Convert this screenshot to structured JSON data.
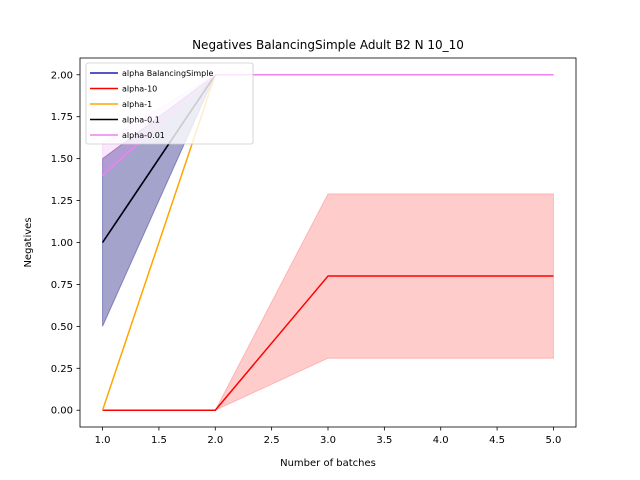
{
  "chart_data": {
    "type": "line",
    "title": "Negatives BalancingSimple Adult B2 N 10_10",
    "xlabel": "Number of batches",
    "ylabel": "Negatives",
    "xlim": [
      0.8,
      5.2
    ],
    "ylim": [
      -0.1,
      2.1
    ],
    "xticks": [
      1.0,
      1.5,
      2.0,
      2.5,
      3.0,
      3.5,
      4.0,
      4.5,
      5.0
    ],
    "xtick_labels": [
      "1.0",
      "1.5",
      "2.0",
      "2.5",
      "3.0",
      "3.5",
      "4.0",
      "4.5",
      "5.0"
    ],
    "yticks": [
      0.0,
      0.25,
      0.5,
      0.75,
      1.0,
      1.25,
      1.5,
      1.75,
      2.0
    ],
    "ytick_labels": [
      "0.00",
      "0.25",
      "0.50",
      "0.75",
      "1.00",
      "1.25",
      "1.50",
      "1.75",
      "2.00"
    ],
    "grid": false,
    "legend_position": "top-left",
    "x": [
      1,
      2,
      3,
      4,
      5
    ],
    "series": [
      {
        "name": "alpha BalancingSimple",
        "color": "#1f1fb4",
        "values": [
          1.0,
          2.0,
          2.0,
          2.0,
          2.0
        ],
        "band_low": [
          0.5,
          2.0,
          2.0,
          2.0,
          2.0
        ],
        "band_high": [
          1.5,
          2.0,
          2.0,
          2.0,
          2.0
        ],
        "band_color": "#1a1a80",
        "band_opacity": 0.4
      },
      {
        "name": "alpha-10",
        "color": "#ff0000",
        "values": [
          0.0,
          0.0,
          0.8,
          0.8,
          0.8
        ],
        "band_low": [
          0.0,
          0.0,
          0.31,
          0.31,
          0.31
        ],
        "band_high": [
          0.0,
          0.0,
          1.29,
          1.29,
          1.29
        ],
        "band_color": "#ff0000",
        "band_opacity": 0.2
      },
      {
        "name": "alpha-1",
        "color": "#ffa500",
        "values": [
          0.0,
          2.0,
          2.0,
          2.0,
          2.0
        ]
      },
      {
        "name": "alpha-0.1",
        "color": "#000000",
        "values": [
          1.0,
          2.0,
          2.0,
          2.0,
          2.0
        ]
      },
      {
        "name": "alpha-0.01",
        "color": "#ee82ee",
        "values": [
          1.4,
          2.0,
          2.0,
          2.0,
          2.0
        ],
        "band_low": [
          1.4,
          2.0,
          2.0,
          2.0,
          2.0
        ],
        "band_high": [
          1.6,
          2.0,
          2.0,
          2.0,
          2.0
        ],
        "band_color": "#ee82ee",
        "band_opacity": 0.2
      }
    ]
  }
}
